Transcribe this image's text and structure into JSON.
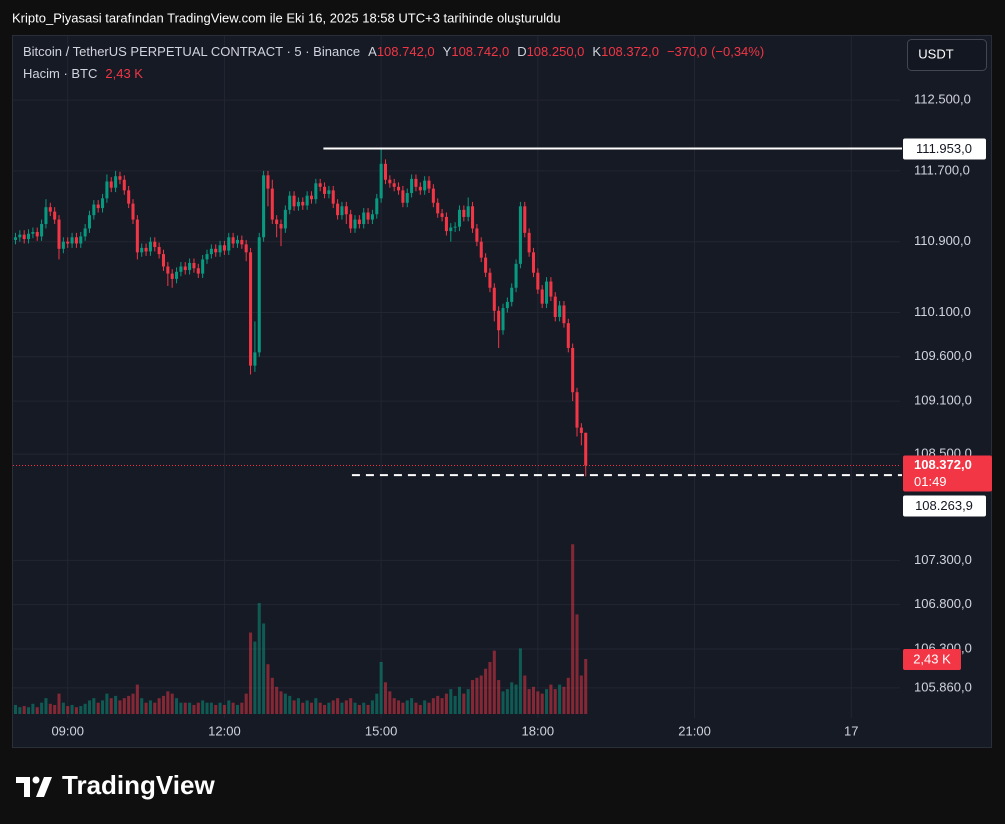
{
  "header": {
    "caption": "Kripto_Piyasasi tarafından TradingView.com ile Eki 16, 2025 18:58 UTC+3 tarihinde oluşturuldu"
  },
  "footer": {
    "brand": "TradingView"
  },
  "chart_data": {
    "type": "candlestick",
    "title": "Bitcoin / TetherUS PERPETUAL CONTRACT · 5 · Binance",
    "legend": [
      {
        "key": "A",
        "value": 108742,
        "label": "108.742,0"
      },
      {
        "key": "Y",
        "value": 108742,
        "label": "108.742,0"
      },
      {
        "key": "D",
        "value": 108250,
        "label": "108.250,0"
      },
      {
        "key": "K",
        "value": 108372,
        "label": "108.372,0"
      }
    ],
    "change": {
      "value": -370,
      "label": "−370,0"
    },
    "change_pct": {
      "value": -0.34,
      "label": "(−0,34%)"
    },
    "volume_title": "Hacim · BTC",
    "volume_last": {
      "value": 2430,
      "label": "2,43 K"
    },
    "currency_button": "USDT",
    "up_color": "#089981",
    "down_color": "#f23645",
    "grid": true,
    "xlim": [
      476,
      1496
    ],
    "xticks": [
      {
        "value": 540,
        "label": "09:00"
      },
      {
        "value": 720,
        "label": "12:00"
      },
      {
        "value": 900,
        "label": "15:00"
      },
      {
        "value": 1080,
        "label": "18:00"
      },
      {
        "value": 1260,
        "label": "21:00"
      },
      {
        "value": 1440,
        "label": "17"
      }
    ],
    "ylim": [
      105520,
      113235
    ],
    "yticks": [
      {
        "value": 112500,
        "label": "112.500,0"
      },
      {
        "value": 111700,
        "label": "111.700,0"
      },
      {
        "value": 110900,
        "label": "110.900,0"
      },
      {
        "value": 110100,
        "label": "110.100,0"
      },
      {
        "value": 109600,
        "label": "109.600,0"
      },
      {
        "value": 109100,
        "label": "109.100,0"
      },
      {
        "value": 108500,
        "label": "108.500,0"
      },
      {
        "value": 107300,
        "label": "107.300,0"
      },
      {
        "value": 106800,
        "label": "106.800,0"
      },
      {
        "value": 106300,
        "label": "106.300,0"
      },
      {
        "value": 105860,
        "label": "105.860,0"
      }
    ],
    "volume_ylim": [
      0,
      30000
    ],
    "current_price": {
      "value": 108372,
      "label": "108.372,0",
      "countdown": "01:49"
    },
    "horizontal_lines": [
      {
        "value": 111953,
        "label": "111.953,0",
        "style": "solid",
        "color": "#ffffff"
      },
      {
        "value": 108263.9,
        "label": "108.263,9",
        "style": "dashed",
        "color": "#ffffff"
      }
    ],
    "x": [
      480,
      485,
      490,
      495,
      500,
      505,
      510,
      515,
      520,
      525,
      530,
      535,
      540,
      545,
      550,
      555,
      560,
      565,
      570,
      575,
      580,
      585,
      590,
      595,
      600,
      605,
      610,
      615,
      620,
      625,
      630,
      635,
      640,
      645,
      650,
      655,
      660,
      665,
      670,
      675,
      680,
      685,
      690,
      695,
      700,
      705,
      710,
      715,
      720,
      725,
      730,
      735,
      740,
      745,
      750,
      755,
      760,
      765,
      770,
      775,
      780,
      785,
      790,
      795,
      800,
      805,
      810,
      815,
      820,
      825,
      830,
      835,
      840,
      845,
      850,
      855,
      860,
      865,
      870,
      875,
      880,
      885,
      890,
      895,
      900,
      905,
      910,
      915,
      920,
      925,
      930,
      935,
      940,
      945,
      950,
      955,
      960,
      965,
      970,
      975,
      980,
      985,
      990,
      995,
      1000,
      1005,
      1010,
      1015,
      1020,
      1025,
      1030,
      1035,
      1040,
      1045,
      1050,
      1055,
      1060,
      1065,
      1070,
      1075,
      1080,
      1085,
      1090,
      1095,
      1100,
      1105,
      1110,
      1115,
      1120,
      1125,
      1130,
      1135
    ],
    "open": [
      110920,
      110950,
      110980,
      110930,
      110990,
      111010,
      110960,
      111100,
      111290,
      111240,
      111150,
      110820,
      110900,
      110880,
      110950,
      110880,
      110960,
      111050,
      111200,
      111320,
      111280,
      111390,
      111580,
      111510,
      111640,
      111600,
      111480,
      111330,
      111150,
      110780,
      110830,
      110790,
      110900,
      110840,
      110760,
      110620,
      110540,
      110480,
      110560,
      110620,
      110580,
      110660,
      110600,
      110540,
      110700,
      110760,
      110820,
      110780,
      110860,
      110800,
      110950,
      110880,
      110920,
      110870,
      110780,
      109500,
      109650,
      110950,
      111650,
      111500,
      111150,
      111100,
      111050,
      111260,
      111420,
      111300,
      111350,
      111310,
      111420,
      111380,
      111560,
      111520,
      111440,
      111480,
      111330,
      111200,
      111300,
      111210,
      111050,
      111150,
      111100,
      111230,
      111150,
      111210,
      111390,
      111780,
      111600,
      111560,
      111520,
      111480,
      111340,
      111450,
      111610,
      111520,
      111480,
      111590,
      111500,
      111340,
      111220,
      111180,
      111020,
      111060,
      111070,
      111260,
      111180,
      111300,
      111050,
      110900,
      110720,
      110550,
      110380,
      110120,
      109900,
      110150,
      110220,
      110380,
      110650,
      111300,
      111000,
      110780,
      110550,
      110360,
      110200,
      110450,
      110280,
      110050,
      110180,
      109980,
      109700,
      109200,
      108800,
      108742
    ],
    "high": [
      111000,
      111030,
      111030,
      111040,
      111060,
      111060,
      111150,
      111380,
      111340,
      111290,
      111200,
      110950,
      110950,
      111000,
      111000,
      111010,
      111100,
      111250,
      111370,
      111370,
      111440,
      111660,
      111630,
      111700,
      111690,
      111650,
      111530,
      111380,
      111200,
      110880,
      110880,
      110950,
      110950,
      110890,
      110810,
      110670,
      110590,
      110610,
      110670,
      110670,
      110710,
      110710,
      110650,
      110750,
      110810,
      110870,
      110870,
      110910,
      110910,
      111000,
      111000,
      110970,
      110970,
      110920,
      110830,
      110000,
      111000,
      111700,
      111700,
      111600,
      111200,
      111150,
      111310,
      111470,
      111470,
      111400,
      111400,
      111470,
      111470,
      111610,
      111610,
      111570,
      111530,
      111530,
      111380,
      111350,
      111350,
      111260,
      111200,
      111200,
      111280,
      111280,
      111260,
      111440,
      111953,
      111830,
      111650,
      111610,
      111570,
      111530,
      111500,
      111660,
      111660,
      111570,
      111640,
      111640,
      111550,
      111390,
      111270,
      111230,
      111110,
      111120,
      111310,
      111310,
      111400,
      111350,
      111100,
      110950,
      110770,
      110600,
      110430,
      110170,
      110200,
      110270,
      110430,
      110700,
      111350,
      111350,
      111050,
      110830,
      110600,
      110410,
      110500,
      110500,
      110330,
      110230,
      110230,
      110030,
      109750,
      109250,
      108850,
      108742
    ],
    "low": [
      110870,
      110900,
      110880,
      110880,
      110940,
      110910,
      110910,
      111050,
      111190,
      111100,
      110700,
      110770,
      110830,
      110830,
      110830,
      110830,
      110910,
      111000,
      111150,
      111230,
      111230,
      111340,
      111460,
      111460,
      111550,
      111430,
      111280,
      111100,
      110700,
      110730,
      110740,
      110740,
      110790,
      110710,
      110570,
      110400,
      110380,
      110430,
      110510,
      110530,
      110530,
      110550,
      110490,
      110490,
      110650,
      110710,
      110730,
      110730,
      110750,
      110750,
      110830,
      110830,
      110820,
      110680,
      109400,
      109430,
      109600,
      110900,
      111300,
      111100,
      110950,
      110850,
      111000,
      111210,
      111250,
      111250,
      111260,
      111260,
      111330,
      111330,
      111470,
      111390,
      111390,
      111280,
      111150,
      111150,
      111100,
      111000,
      111000,
      111050,
      111050,
      111100,
      111100,
      111160,
      111340,
      111550,
      111510,
      111470,
      111430,
      111290,
      111290,
      111400,
      111470,
      111430,
      111430,
      111450,
      111290,
      111170,
      111130,
      110970,
      110900,
      111010,
      111020,
      111130,
      111130,
      111000,
      110850,
      110670,
      110500,
      110330,
      110000,
      109700,
      109850,
      110100,
      110170,
      110330,
      110600,
      110950,
      110730,
      110500,
      110310,
      110150,
      110150,
      110230,
      110000,
      110000,
      109930,
      109650,
      109100,
      108700,
      108600,
      108250
    ],
    "close": [
      110950,
      110980,
      110930,
      110990,
      111010,
      110960,
      111100,
      111290,
      111240,
      111150,
      110820,
      110900,
      110880,
      110950,
      110880,
      110960,
      111050,
      111200,
      111320,
      111280,
      111390,
      111580,
      111510,
      111640,
      111600,
      111480,
      111330,
      111150,
      110780,
      110830,
      110790,
      110900,
      110840,
      110760,
      110620,
      110540,
      110480,
      110560,
      110620,
      110580,
      110660,
      110600,
      110540,
      110700,
      110760,
      110820,
      110780,
      110860,
      110800,
      110950,
      110880,
      110920,
      110870,
      110780,
      109500,
      109650,
      110950,
      111650,
      111500,
      111150,
      111100,
      111050,
      111260,
      111420,
      111300,
      111350,
      111310,
      111420,
      111380,
      111560,
      111520,
      111440,
      111480,
      111330,
      111200,
      111300,
      111210,
      111050,
      111150,
      111100,
      111230,
      111150,
      111210,
      111390,
      111780,
      111600,
      111560,
      111520,
      111480,
      111340,
      111450,
      111610,
      111520,
      111480,
      111590,
      111500,
      111340,
      111220,
      111180,
      111020,
      111060,
      111070,
      111260,
      111180,
      111300,
      111050,
      110900,
      110720,
      110550,
      110380,
      110120,
      109900,
      110150,
      110220,
      110380,
      110650,
      111300,
      111000,
      110780,
      110550,
      110360,
      110200,
      110450,
      110280,
      110050,
      110180,
      109980,
      109700,
      109200,
      108800,
      108740,
      108372
    ],
    "volume": [
      400,
      300,
      350,
      300,
      450,
      300,
      500,
      700,
      450,
      400,
      900,
      500,
      350,
      400,
      300,
      350,
      450,
      600,
      700,
      500,
      600,
      900,
      700,
      800,
      600,
      700,
      800,
      900,
      1300,
      700,
      500,
      600,
      500,
      700,
      800,
      1000,
      900,
      700,
      500,
      500,
      500,
      400,
      500,
      600,
      500,
      500,
      400,
      500,
      400,
      600,
      500,
      400,
      500,
      900,
      3600,
      3200,
      4900,
      4000,
      2200,
      1600,
      1200,
      1000,
      900,
      800,
      600,
      700,
      500,
      600,
      500,
      700,
      500,
      400,
      500,
      600,
      700,
      500,
      600,
      700,
      500,
      400,
      500,
      400,
      600,
      900,
      2300,
      1400,
      1000,
      700,
      600,
      500,
      600,
      700,
      500,
      400,
      600,
      500,
      700,
      800,
      700,
      900,
      1100,
      800,
      1200,
      900,
      1100,
      1500,
      1600,
      1700,
      2000,
      2300,
      2800,
      1500,
      1000,
      1100,
      1400,
      1300,
      2900,
      1700,
      1100,
      1200,
      1000,
      900,
      1100,
      1300,
      1100,
      1300,
      1200,
      1600,
      7500,
      4400,
      1700,
      2430
    ]
  }
}
